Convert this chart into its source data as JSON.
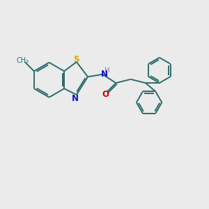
{
  "background_color": "#ebebeb",
  "bond_color": "#2d6b6b",
  "S_color": "#ccaa00",
  "N_color": "#1010cc",
  "O_color": "#cc0000",
  "H_color": "#888888",
  "line_width": 1.4,
  "fig_size": [
    3.0,
    3.0
  ],
  "dpi": 100,
  "xlim": [
    0,
    10
  ],
  "ylim": [
    0,
    10
  ]
}
